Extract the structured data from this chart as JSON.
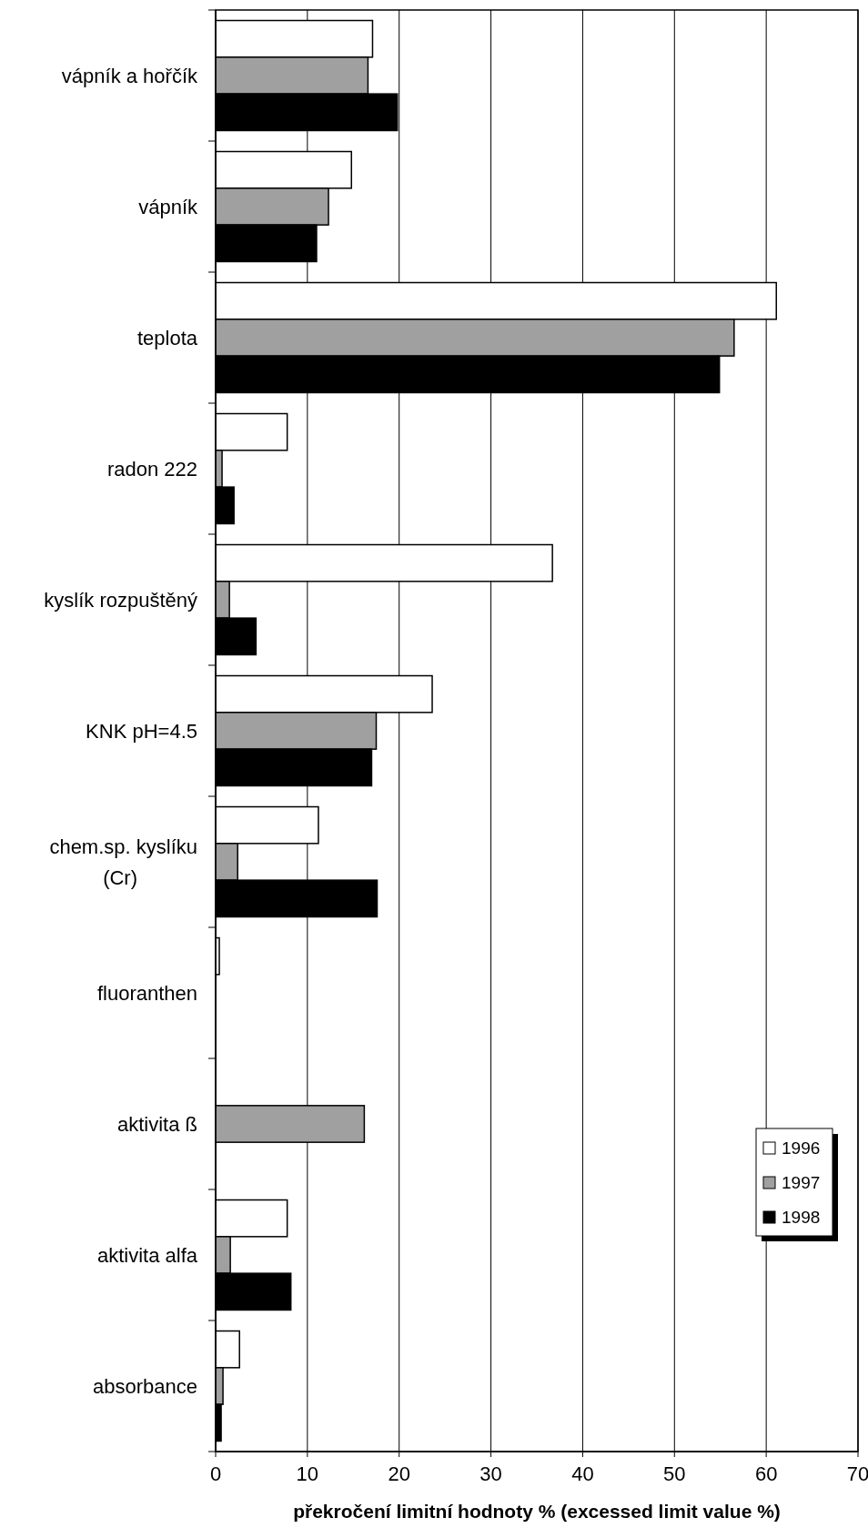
{
  "chart_data": {
    "type": "bar",
    "orientation": "horizontal",
    "xlabel": "překročení limitní hodnoty % (excessed limit value %)",
    "categories": [
      "vápník a hořčík",
      "vápník",
      "teplota",
      "radon 222",
      "kyslík rozpuštěný",
      "KNK pH=4.5",
      "chem.sp. kyslíku (Cr)",
      "fluoranthen",
      "aktivita ß",
      "aktivita alfa",
      "absorbance"
    ],
    "series": [
      {
        "name": "1996",
        "color": "#ffffff",
        "values": [
          17.1,
          14.8,
          61.1,
          7.8,
          36.7,
          23.6,
          11.2,
          0.4,
          null,
          7.8,
          2.6
        ]
      },
      {
        "name": "1997",
        "color": "#a0a0a0",
        "values": [
          16.6,
          12.3,
          56.5,
          0.7,
          1.5,
          17.5,
          2.4,
          null,
          16.2,
          1.6,
          0.8
        ]
      },
      {
        "name": "1998",
        "color": "#000000",
        "values": [
          19.8,
          11.0,
          54.9,
          2.0,
          4.4,
          17.0,
          17.6,
          null,
          null,
          8.2,
          0.6
        ]
      }
    ],
    "xlim": [
      0,
      70
    ],
    "xticks": [
      0,
      10,
      20,
      30,
      40,
      50,
      60,
      70
    ],
    "grid": "x",
    "legend": "bottom right"
  }
}
